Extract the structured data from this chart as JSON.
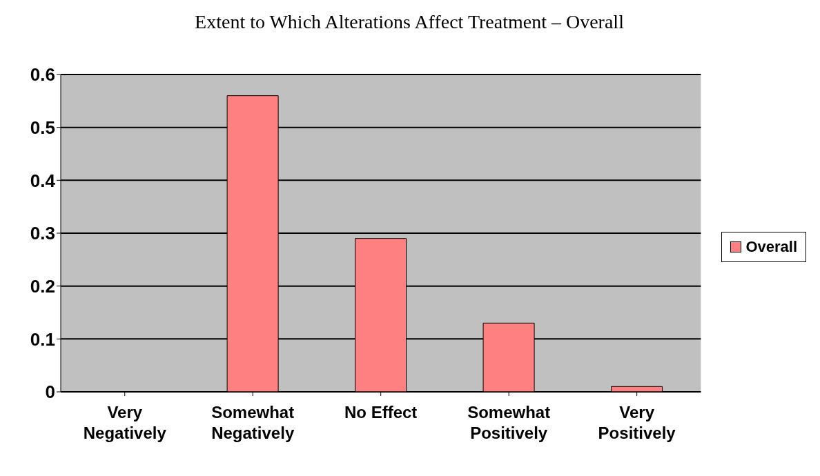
{
  "chart_data": {
    "type": "bar",
    "title": "Extent to Which Alterations Affect Treatment – Overall",
    "categories": [
      "Very Negatively",
      "Somewhat Negatively",
      "No Effect",
      "Somewhat Positively",
      "Very Positively"
    ],
    "series": [
      {
        "name": "Overall",
        "color": "#ff8080",
        "values": [
          0,
          0.56,
          0.29,
          0.13,
          0.01
        ]
      }
    ],
    "ylim": [
      0,
      0.6
    ],
    "yticks": [
      0,
      0.1,
      0.2,
      0.3,
      0.4,
      0.5,
      0.6
    ],
    "grid": "y",
    "legend": "right"
  }
}
